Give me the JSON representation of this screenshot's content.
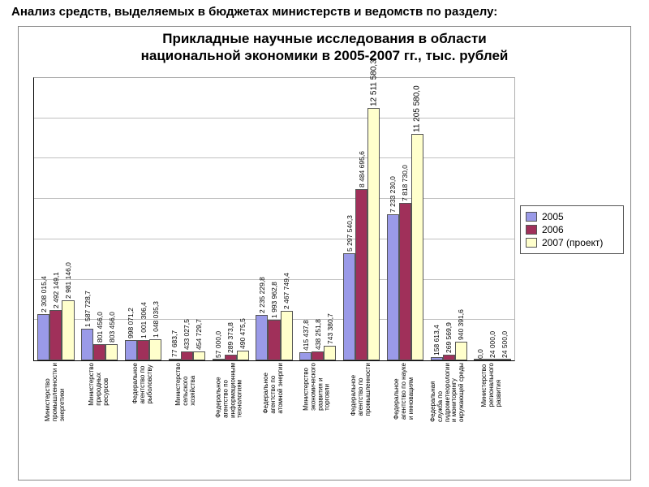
{
  "page_heading": "Анализ средств, выделяемых в бюджетах министерств и ведомств по разделу:",
  "chart": {
    "type": "bar",
    "title_line1": "Прикладные научные исследования в области",
    "title_line2": "национальной экономики в 2005-2007 гг., тыс. рублей",
    "title_fontsize": 17,
    "background_color": "#ffffff",
    "grid_color": "#c0c0c0",
    "axis_color": "#000000",
    "plot_border_color": "#b0b0b0",
    "y": {
      "min": 0,
      "max": 14000000,
      "gridlines": [
        2000000,
        4000000,
        6000000,
        8000000,
        10000000,
        12000000
      ]
    },
    "series": [
      {
        "name": "2005",
        "color": "#9a9ae8"
      },
      {
        "name": "2006",
        "color": "#a0305a"
      },
      {
        "name": "2007 (проект)",
        "color": "#ffffcc"
      }
    ],
    "label_fontsize": 8.5,
    "category_fontsize": 8,
    "legend_fontsize": 12,
    "bar_border_color": "#555555",
    "categories": [
      {
        "name": "Министерство\nпромышленности и\nэнергетики",
        "values": [
          2308015.4,
          2492149.1,
          2981146.0
        ],
        "value_labels": [
          "2 308 015,4",
          "2 492 149,1",
          "2 981 146,0"
        ]
      },
      {
        "name": "Министерство\nприродных\nресурсов",
        "values": [
          1587728.7,
          801456.0,
          803456.0
        ],
        "value_labels": [
          "1 587 728,7",
          "801 456,0",
          "803 456,0"
        ]
      },
      {
        "name": "Федеральное\nагентство по\nрыболовству",
        "values": [
          998071.2,
          1001306.4,
          1048035.3
        ],
        "value_labels": [
          "998 071,2",
          "1 001 306,4",
          "1 048 035,3"
        ]
      },
      {
        "name": "Министерство\nсельского\nхозяйства",
        "values": [
          77683.7,
          433027.5,
          454729.7
        ],
        "value_labels": [
          "77 683,7",
          "433 027,5",
          "454 729,7"
        ]
      },
      {
        "name": "Федеральное\nагентство по\nинформационным\nтехнологиям",
        "values": [
          57000.0,
          289373.8,
          490475.5
        ],
        "value_labels": [
          "57 000,0",
          "289 373,8",
          "490 475,5"
        ]
      },
      {
        "name": "Федеральное\nагентство по\nатомной энергии",
        "values": [
          2235229.8,
          1993962.8,
          2467749.4
        ],
        "value_labels": [
          "2 235 229,8",
          "1 993 962,8",
          "2 467 749,4"
        ]
      },
      {
        "name": "Министерство\nэкономического\nразвития и\nторговли",
        "values": [
          415437.8,
          438251.8,
          743380.7
        ],
        "value_labels": [
          "415 437,8",
          "438 251,8",
          "743 380,7"
        ]
      },
      {
        "name": "Федеральное\nагентство по\nпромышленности",
        "values": [
          5297540.3,
          8484695.6,
          12511580.3
        ],
        "value_labels": [
          "5 297 540,3",
          "8 484 695,6",
          "12 511 580,3"
        ],
        "highlight_index": 2
      },
      {
        "name": "Федеральное\nагентство по науке\nи инновациям",
        "values": [
          7233230.0,
          7818730.0,
          11205580.0
        ],
        "value_labels": [
          "7 233 230,0",
          "7 818 730,0",
          "11 205 580,0"
        ],
        "highlight_index": 2
      },
      {
        "name": "Федеральная\nслужба по\nгидрометеорологии\nи мониторингу\nокружающей среды",
        "values": [
          158613.4,
          269569.9,
          940391.6
        ],
        "value_labels": [
          "158 613,4",
          "269 569,9",
          "940 391,6"
        ]
      },
      {
        "name": "Министерство\nрегионального\nразвития",
        "values": [
          0.0,
          24000.0,
          24500.0
        ],
        "value_labels": [
          "0,0",
          "24 000,0",
          "24 500,0"
        ]
      }
    ]
  }
}
